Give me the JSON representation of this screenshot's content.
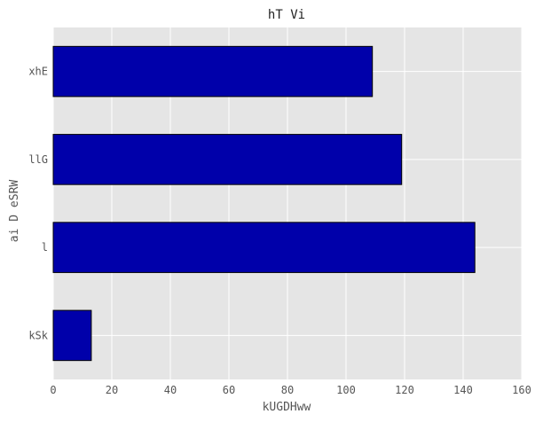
{
  "chart_data": {
    "type": "bar",
    "orientation": "horizontal",
    "title": "hT Vi",
    "xlabel": "kUGDHww",
    "ylabel": "ai D eSRW",
    "categories": [
      "xhE",
      "llG",
      "l",
      "kSk"
    ],
    "values": [
      109,
      119,
      144,
      13
    ],
    "xlim": [
      0,
      160
    ],
    "xticks": [
      "0",
      "20",
      "40",
      "60",
      "80",
      "100",
      "120",
      "140",
      "160"
    ],
    "grid": true,
    "bar_color": "#0000AA",
    "edge_color": "#000000",
    "background_color": "#E5E5E5",
    "grid_color": "#FFFFFF"
  }
}
